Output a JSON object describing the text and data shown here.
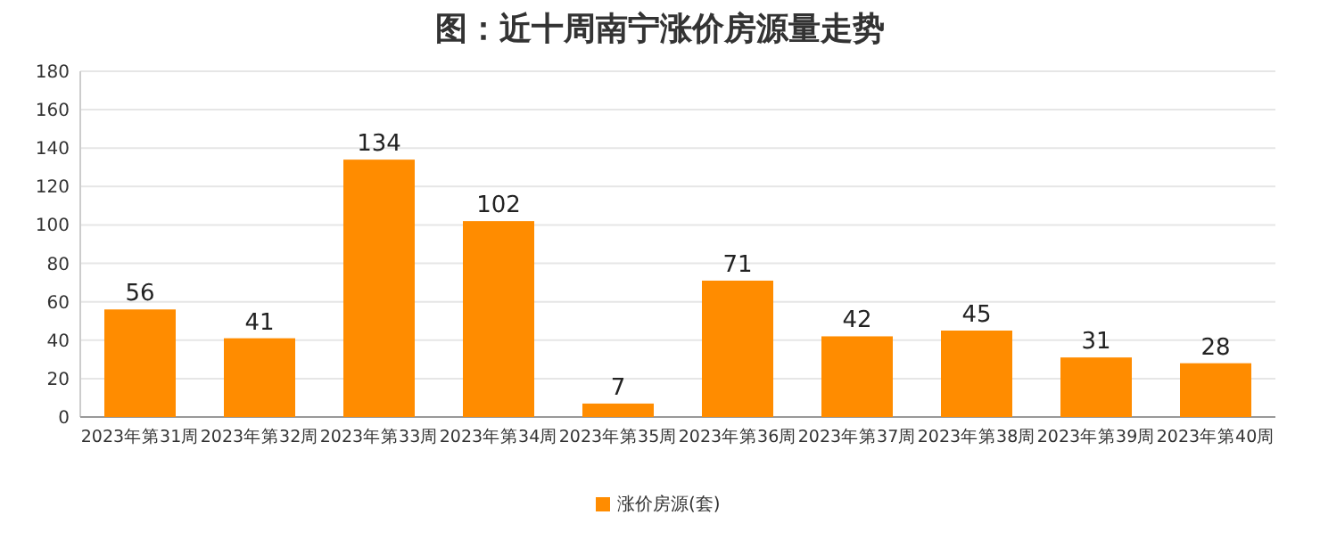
{
  "chart_data": {
    "type": "bar",
    "title": "图：近十周南宁涨价房源量走势",
    "categories": [
      "2023年第31周",
      "2023年第32周",
      "2023年第33周",
      "2023年第34周",
      "2023年第35周",
      "2023年第36周",
      "2023年第37周",
      "2023年第38周",
      "2023年第39周",
      "2023年第40周"
    ],
    "series": [
      {
        "name": "涨价房源(套)",
        "color": "#ff8c00",
        "values": [
          56,
          41,
          134,
          102,
          7,
          71,
          42,
          45,
          31,
          28
        ]
      }
    ],
    "ylim": [
      0,
      180
    ],
    "yticks": [
      0,
      20,
      40,
      60,
      80,
      100,
      120,
      140,
      160,
      180
    ],
    "grid": "y",
    "legend": "bottom",
    "data_labels": true
  }
}
